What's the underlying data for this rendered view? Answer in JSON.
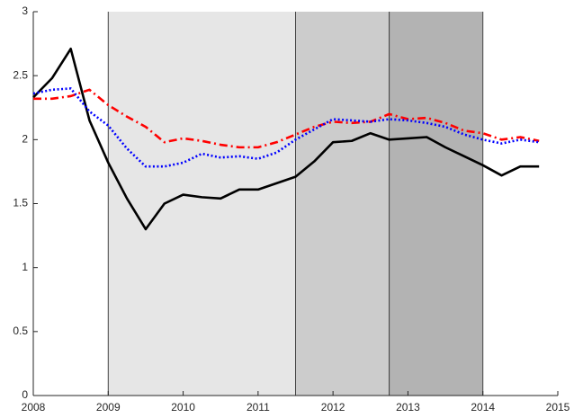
{
  "chart_data": {
    "type": "line",
    "x": [
      2008,
      2008.25,
      2008.5,
      2008.75,
      2009,
      2009.25,
      2009.5,
      2009.75,
      2010,
      2010.25,
      2010.5,
      2010.75,
      2011,
      2011.25,
      2011.5,
      2011.75,
      2012,
      2012.25,
      2012.5,
      2012.75,
      2013,
      2013.25,
      2013.5,
      2013.75,
      2014,
      2014.25,
      2014.5,
      2014.75
    ],
    "series": [
      {
        "color": "#000000",
        "style": "solid",
        "values": [
          2.33,
          2.48,
          2.71,
          2.15,
          1.82,
          1.54,
          1.3,
          1.5,
          1.57,
          1.55,
          1.54,
          1.61,
          1.61,
          1.66,
          1.71,
          1.83,
          1.98,
          1.99,
          2.05,
          2.0,
          2.01,
          2.02,
          1.94,
          1.87,
          1.8,
          1.72,
          1.79,
          1.79
        ]
      },
      {
        "color": "#ff0000",
        "style": "dashdot",
        "values": [
          2.32,
          2.32,
          2.34,
          2.39,
          2.27,
          2.18,
          2.1,
          1.98,
          2.01,
          1.99,
          1.96,
          1.94,
          1.94,
          1.98,
          2.04,
          2.1,
          2.14,
          2.13,
          2.14,
          2.2,
          2.16,
          2.17,
          2.13,
          2.07,
          2.05,
          2.0,
          2.02,
          1.99
        ]
      },
      {
        "color": "#0000ff",
        "style": "dotted",
        "values": [
          2.36,
          2.39,
          2.4,
          2.22,
          2.11,
          1.93,
          1.79,
          1.79,
          1.82,
          1.89,
          1.86,
          1.87,
          1.85,
          1.9,
          2.0,
          2.08,
          2.16,
          2.15,
          2.14,
          2.16,
          2.15,
          2.13,
          2.1,
          2.04,
          2.0,
          1.97,
          2.0,
          1.98
        ]
      }
    ],
    "regions": [
      {
        "start": 2009,
        "end": 2011.5,
        "color": "#e6e6e6"
      },
      {
        "start": 2011.5,
        "end": 2012.75,
        "color": "#cccccc"
      },
      {
        "start": 2012.75,
        "end": 2014,
        "color": "#b3b3b3"
      }
    ],
    "xlim": [
      2008,
      2015
    ],
    "xticks": [
      2008,
      2009,
      2010,
      2011,
      2012,
      2013,
      2014,
      2015
    ],
    "ylim": [
      0,
      3
    ],
    "yticks": [
      0,
      0.5,
      1,
      1.5,
      2,
      2.5,
      3
    ]
  }
}
